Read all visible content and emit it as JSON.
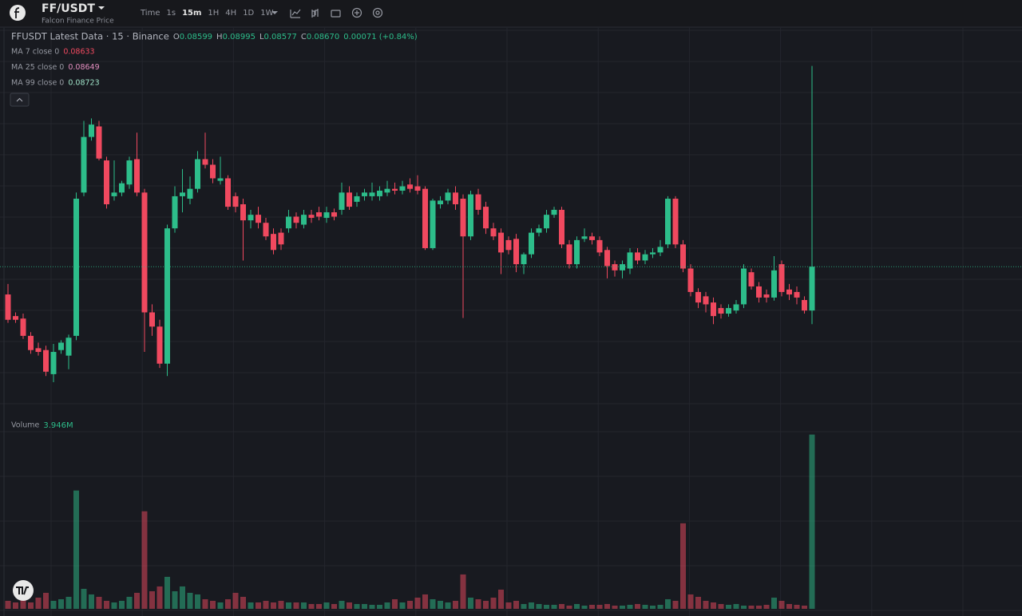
{
  "header": {
    "symbol": "FF/USDT",
    "name": "Falcon Finance Price",
    "timeframes": [
      "Time",
      "1s",
      "15m",
      "1H",
      "4H",
      "1D",
      "1W"
    ]
  },
  "legend": {
    "title": "FFUSDT Latest Data · 15 · Binance",
    "ohlc": [
      {
        "k": "O",
        "v": "0.08599"
      },
      {
        "k": "H",
        "v": "0.08995"
      },
      {
        "k": "L",
        "v": "0.08577"
      },
      {
        "k": "C",
        "v": "0.08670"
      }
    ],
    "change": "0.00071 (+0.84%)",
    "ma": [
      {
        "label": "MA 7 close 0",
        "value": "0.08633",
        "color": "#f0495f"
      },
      {
        "label": "MA 25 close 0",
        "value": "0.08649",
        "color": "#e58fc0"
      },
      {
        "label": "MA 99 close 0",
        "value": "0.08723",
        "color": "#9fe3c8"
      }
    ],
    "volume": {
      "label": "Volume",
      "value": "3.946M"
    }
  },
  "chart_data": {
    "type": "candlestick",
    "up_color": "#2dbd8a",
    "down_color": "#f0495f",
    "ylim": [
      0.0843,
      0.0905
    ],
    "vlim": [
      0,
      4300000
    ],
    "open": [
      0.08625,
      0.0859,
      0.08586,
      0.08558,
      0.08538,
      0.08535,
      0.08496,
      0.08535,
      0.08526,
      0.08558,
      0.0879,
      0.0888,
      0.08897,
      0.08842,
      0.08784,
      0.0879,
      0.08803,
      0.08844,
      0.0879,
      0.08596,
      0.08573,
      0.08513,
      0.08732,
      0.08784,
      0.0878,
      0.08796,
      0.08844,
      0.08835,
      0.08809,
      0.08813,
      0.08784,
      0.08771,
      0.08745,
      0.08754,
      0.08741,
      0.08723,
      0.08725,
      0.08732,
      0.08751,
      0.08738,
      0.08754,
      0.08758,
      0.08749,
      0.08758,
      0.08762,
      0.0879,
      0.08775,
      0.08784,
      0.08784,
      0.08784,
      0.0879,
      0.08796,
      0.08793,
      0.08803,
      0.088,
      0.08796,
      0.087,
      0.08771,
      0.08777,
      0.0879,
      0.0878,
      0.08719,
      0.08787,
      0.08767,
      0.08732,
      0.08725,
      0.08713,
      0.08715,
      0.08674,
      0.0869,
      0.08725,
      0.08732,
      0.08754,
      0.08762,
      0.08706,
      0.08674,
      0.08715,
      0.08719,
      0.08713,
      0.08697,
      0.08674,
      0.08664,
      0.08667,
      0.08693,
      0.0868,
      0.0869,
      0.08693,
      0.08706,
      0.0878,
      0.08706,
      0.08667,
      0.08629,
      0.08622,
      0.08612,
      0.08603,
      0.08594,
      0.08599,
      0.08609,
      0.08661,
      0.08638,
      0.08625,
      0.0862,
      0.08674,
      0.08633,
      0.08629,
      0.08616,
      0.08599
    ],
    "high": [
      0.08642,
      0.08596,
      0.08594,
      0.08564,
      0.08547,
      0.08542,
      0.08545,
      0.08551,
      0.0856,
      0.0879,
      0.08906,
      0.0891,
      0.08906,
      0.08848,
      0.08842,
      0.08809,
      0.08848,
      0.08887,
      0.08796,
      0.08609,
      0.08584,
      0.08738,
      0.088,
      0.08828,
      0.08816,
      0.08857,
      0.08887,
      0.08844,
      0.08848,
      0.08818,
      0.0879,
      0.0878,
      0.08762,
      0.08767,
      0.08749,
      0.08732,
      0.08732,
      0.08762,
      0.08758,
      0.08762,
      0.08762,
      0.08767,
      0.08767,
      0.08764,
      0.08806,
      0.088,
      0.0879,
      0.08796,
      0.08806,
      0.088,
      0.08809,
      0.08806,
      0.08809,
      0.08813,
      0.08818,
      0.088,
      0.0878,
      0.08784,
      0.08796,
      0.088,
      0.08787,
      0.08793,
      0.08796,
      0.08775,
      0.08741,
      0.08732,
      0.08719,
      0.08723,
      0.08693,
      0.08732,
      0.08738,
      0.08762,
      0.08767,
      0.08767,
      0.08713,
      0.08719,
      0.08732,
      0.08725,
      0.08719,
      0.08702,
      0.0868,
      0.0868,
      0.087,
      0.087,
      0.08697,
      0.087,
      0.08713,
      0.08784,
      0.08784,
      0.08713,
      0.08674,
      0.08635,
      0.08629,
      0.0862,
      0.08609,
      0.08609,
      0.08616,
      0.08674,
      0.08667,
      0.08645,
      0.08633,
      0.08687,
      0.0868,
      0.08642,
      0.08638,
      0.08622,
      0.08995
    ],
    "low": [
      0.08579,
      0.08579,
      0.08553,
      0.08529,
      0.08526,
      0.08493,
      0.08483,
      0.08529,
      0.08504,
      0.08551,
      0.08784,
      0.08874,
      0.08842,
      0.08764,
      0.08777,
      0.08784,
      0.08796,
      0.08784,
      0.08532,
      0.08558,
      0.08506,
      0.08493,
      0.08725,
      0.08758,
      0.08771,
      0.0879,
      0.08829,
      0.08805,
      0.08803,
      0.08762,
      0.08758,
      0.0868,
      0.08732,
      0.08732,
      0.08713,
      0.0869,
      0.08697,
      0.08725,
      0.08732,
      0.08732,
      0.08741,
      0.08745,
      0.08741,
      0.08745,
      0.08754,
      0.08762,
      0.08767,
      0.08777,
      0.08777,
      0.08777,
      0.08784,
      0.08787,
      0.08787,
      0.0879,
      0.08787,
      0.08697,
      0.08697,
      0.08764,
      0.08771,
      0.08762,
      0.08587,
      0.08713,
      0.08754,
      0.08723,
      0.08713,
      0.08658,
      0.0869,
      0.08661,
      0.08658,
      0.08684,
      0.08719,
      0.08725,
      0.08749,
      0.087,
      0.08667,
      0.08667,
      0.0871,
      0.08706,
      0.08687,
      0.08651,
      0.08654,
      0.08651,
      0.08658,
      0.08674,
      0.08674,
      0.08684,
      0.08687,
      0.087,
      0.087,
      0.08661,
      0.08622,
      0.08603,
      0.08596,
      0.08577,
      0.08586,
      0.08589,
      0.08594,
      0.08603,
      0.08633,
      0.08612,
      0.08612,
      0.08615,
      0.08622,
      0.08616,
      0.08609,
      0.08594,
      0.08577
    ],
    "close": [
      0.08584,
      0.08584,
      0.08558,
      0.08535,
      0.08532,
      0.085,
      0.08532,
      0.08547,
      0.08555,
      0.0878,
      0.0888,
      0.089,
      0.08845,
      0.08771,
      0.0879,
      0.08805,
      0.08842,
      0.0879,
      0.08596,
      0.08573,
      0.08513,
      0.08732,
      0.08784,
      0.0879,
      0.08796,
      0.08844,
      0.08835,
      0.08813,
      0.08813,
      0.08767,
      0.08767,
      0.08745,
      0.08754,
      0.08741,
      0.08719,
      0.08697,
      0.08706,
      0.08751,
      0.08741,
      0.08754,
      0.08749,
      0.08751,
      0.08758,
      0.08751,
      0.0879,
      0.08767,
      0.08784,
      0.0879,
      0.0879,
      0.08793,
      0.08796,
      0.08793,
      0.088,
      0.08796,
      0.08793,
      0.087,
      0.08777,
      0.08777,
      0.0879,
      0.08771,
      0.08719,
      0.08787,
      0.08762,
      0.08732,
      0.08719,
      0.08693,
      0.08697,
      0.08674,
      0.0869,
      0.08725,
      0.08732,
      0.08754,
      0.08762,
      0.08706,
      0.08674,
      0.08713,
      0.08719,
      0.08713,
      0.08693,
      0.08671,
      0.08664,
      0.08674,
      0.08693,
      0.0868,
      0.0869,
      0.08693,
      0.08702,
      0.0878,
      0.08706,
      0.08667,
      0.08629,
      0.08612,
      0.08609,
      0.0859,
      0.08594,
      0.08603,
      0.08609,
      0.08667,
      0.08638,
      0.0862,
      0.0862,
      0.08664,
      0.08629,
      0.08625,
      0.0862,
      0.08599,
      0.0867
    ],
    "volume": [
      181000,
      144800,
      217200,
      144800,
      253400,
      362000,
      181000,
      217200,
      271500,
      2678800,
      452500,
      325800,
      271500,
      181000,
      144800,
      181000,
      271500,
      362000,
      2208200,
      398200,
      506800,
      724000,
      398200,
      506800,
      362000,
      325800,
      217200,
      181000,
      144800,
      217200,
      362000,
      271500,
      144800,
      144800,
      181000,
      144800,
      181000,
      144800,
      144800,
      144800,
      108600,
      108600,
      144800,
      108600,
      181000,
      144800,
      108600,
      108600,
      90500,
      90500,
      144800,
      217200,
      144800,
      181000,
      253400,
      325800,
      217200,
      181000,
      144800,
      181000,
      778300,
      253400,
      217200,
      181000,
      253400,
      434400,
      144800,
      181000,
      108600,
      144800,
      108600,
      90500,
      90500,
      108600,
      72400,
      108600,
      72400,
      90500,
      90500,
      108600,
      72400,
      72400,
      90500,
      108600,
      90500,
      72400,
      90500,
      217200,
      181000,
      1936700,
      325800,
      271500,
      181000,
      144800,
      108600,
      90500,
      108600,
      72400,
      72400,
      72400,
      90500,
      253400,
      181000,
      108600,
      90500,
      72400,
      3946000
    ]
  }
}
